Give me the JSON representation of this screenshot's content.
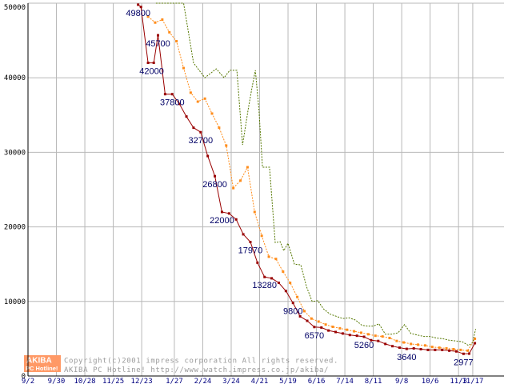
{
  "chart_data": {
    "type": "line",
    "title": "",
    "xlabel": "",
    "ylabel": "",
    "ylim": [
      0,
      50000
    ],
    "xlim": [
      0,
      67
    ],
    "grid": true,
    "y_ticks": [
      0,
      10000,
      20000,
      30000,
      40000,
      50000
    ],
    "y_tick_labels": [
      "0",
      "10000",
      "20000",
      "30000",
      "40000",
      "50000"
    ],
    "x_ticks": [
      {
        "label": "9/2",
        "x": 0
      },
      {
        "label": "9/30",
        "x": 4
      },
      {
        "label": "10/28",
        "x": 8
      },
      {
        "label": "11/25",
        "x": 12
      },
      {
        "label": "12/23",
        "x": 16
      },
      {
        "label": "1/27",
        "x": 20.6
      },
      {
        "label": "2/24",
        "x": 24.6
      },
      {
        "label": "3/24",
        "x": 28.6
      },
      {
        "label": "4/21",
        "x": 32.6
      },
      {
        "label": "5/19",
        "x": 36.6
      },
      {
        "label": "6/16",
        "x": 40.6
      },
      {
        "label": "7/14",
        "x": 44.6
      },
      {
        "label": "8/11",
        "x": 48.6
      },
      {
        "label": "9/8",
        "x": 52.6
      },
      {
        "label": "10/6",
        "x": 56.6
      },
      {
        "label": "11/3",
        "x": 60.6
      },
      {
        "label": "11/17",
        "x": 62.6
      }
    ],
    "series": [
      {
        "name": "min",
        "color": "#990000",
        "markers": true,
        "x": [
          15.5,
          15.9,
          16.9,
          17.7,
          18.3,
          19.3,
          20.3,
          21.3,
          22.3,
          23.3,
          24.3,
          25.3,
          26.3,
          27.3,
          28.3,
          29.3,
          30.3,
          31.3,
          32.3,
          33.3,
          34.3,
          35.3,
          36.3,
          37.3,
          38.3,
          39.3,
          40.3,
          41.3,
          42.3,
          43.3,
          44.3,
          45.3,
          46.3,
          47.3,
          48.3,
          49.3,
          50.3,
          51.3,
          52.3,
          53.3,
          54.3,
          55.3,
          56.3,
          57.3,
          58.3,
          59.3,
          60.3,
          61.3,
          62.1,
          62.9
        ],
        "values": [
          49800,
          49500,
          42000,
          42000,
          45700,
          37800,
          37800,
          36500,
          34800,
          33300,
          32700,
          29500,
          26800,
          22000,
          21800,
          21000,
          19000,
          17970,
          15200,
          13280,
          13100,
          12500,
          11400,
          9800,
          8000,
          7400,
          6570,
          6500,
          6100,
          5900,
          5700,
          5500,
          5400,
          5260,
          4800,
          4700,
          4300,
          4000,
          3800,
          3640,
          3700,
          3600,
          3500,
          3500,
          3500,
          3400,
          3300,
          2977,
          3000,
          4400
        ]
      },
      {
        "name": "avg",
        "color": "#ff8c1a",
        "markers": true,
        "x": [
          16.9,
          17.9,
          18.9,
          19.9,
          20.9,
          21.9,
          22.9,
          23.9,
          24.9,
          25.9,
          26.9,
          27.9,
          28.9,
          29.9,
          30.9,
          31.9,
          32.9,
          33.9,
          34.9,
          35.9,
          36.9,
          37.9,
          38.9,
          39.9,
          40.9,
          41.9,
          42.9,
          43.9,
          44.9,
          45.9,
          46.9,
          47.9,
          48.9,
          49.9,
          50.9,
          51.9,
          52.9,
          53.9,
          54.9,
          55.9,
          56.9,
          57.9,
          58.9,
          59.9,
          60.9,
          61.9,
          62.9
        ],
        "values": [
          48200,
          47400,
          47800,
          46100,
          44900,
          41300,
          38000,
          36800,
          37200,
          35200,
          33300,
          30900,
          25200,
          26200,
          28000,
          22000,
          18800,
          16000,
          15700,
          14000,
          12500,
          10600,
          8700,
          7700,
          7300,
          6900,
          6600,
          6400,
          6200,
          6000,
          5800,
          5600,
          5400,
          5300,
          5100,
          4700,
          4500,
          4300,
          4200,
          4100,
          3900,
          3800,
          3700,
          3600,
          3500,
          3400,
          5000
        ]
      },
      {
        "name": "max",
        "color": "#557700",
        "markers": false,
        "x": [
          18,
          21.9,
          23.3,
          24.9,
          26.5,
          27.6,
          28.4,
          29.4,
          30.2,
          31.0,
          31.5,
          32.0,
          32.5,
          33.0,
          34.0,
          34.8,
          35.5,
          36.0,
          36.6,
          37.5,
          38.4,
          39.2,
          40.0,
          40.8,
          41.6,
          42.5,
          43.4,
          44.3,
          45.2,
          46.1,
          47.0,
          47.8,
          48.6,
          49.4,
          50.3,
          51.2,
          52.1,
          53.0,
          53.9,
          54.8,
          55.7,
          56.6,
          57.5,
          58.4,
          59.3,
          60.2,
          61.1,
          62.0,
          62.6,
          63.0
        ],
        "values": [
          50000,
          50000,
          42000,
          40000,
          41200,
          40000,
          41000,
          41000,
          31000,
          35800,
          38500,
          41000,
          35800,
          28000,
          28000,
          17900,
          18000,
          16800,
          17800,
          15000,
          14900,
          12000,
          10000,
          10100,
          9000,
          8300,
          8000,
          7700,
          7800,
          7500,
          6800,
          6700,
          6700,
          7000,
          5600,
          5600,
          5800,
          6900,
          5700,
          5500,
          5300,
          5300,
          5100,
          5000,
          4800,
          4700,
          4600,
          4100,
          4500,
          6300
        ]
      }
    ],
    "data_labels": [
      {
        "text": "49800",
        "x": 15.5,
        "value": 49800
      },
      {
        "text": "45700",
        "x": 18.3,
        "value": 45700
      },
      {
        "text": "42000",
        "x": 17.4,
        "value": 42000
      },
      {
        "text": "37800",
        "x": 20.3,
        "value": 37800
      },
      {
        "text": "32700",
        "x": 24.3,
        "value": 32700
      },
      {
        "text": "26800",
        "x": 26.3,
        "value": 26800
      },
      {
        "text": "22000",
        "x": 27.3,
        "value": 22000
      },
      {
        "text": "17970",
        "x": 31.3,
        "value": 17970
      },
      {
        "text": "13280",
        "x": 33.3,
        "value": 13280
      },
      {
        "text": "9800",
        "x": 37.3,
        "value": 9800
      },
      {
        "text": "6570",
        "x": 40.3,
        "value": 6570
      },
      {
        "text": "5260",
        "x": 47.3,
        "value": 5260
      },
      {
        "text": "3640",
        "x": 53.3,
        "value": 3640
      },
      {
        "text": "2977",
        "x": 61.3,
        "value": 2977
      }
    ]
  },
  "watermark": {
    "logo_top": "AKIBA",
    "logo_bottom": "PC Hotline!",
    "line1": "Copyright(c)2001 impress corporation All rights reserved.",
    "line2": "AKIBA PC Hotline!  http://www.watch.impress.co.jp/akiba/"
  },
  "colors": {
    "grid": "#b8b8b8",
    "axis": "#000000",
    "background": "#ffffff",
    "logo_bg": "#ff9966"
  }
}
